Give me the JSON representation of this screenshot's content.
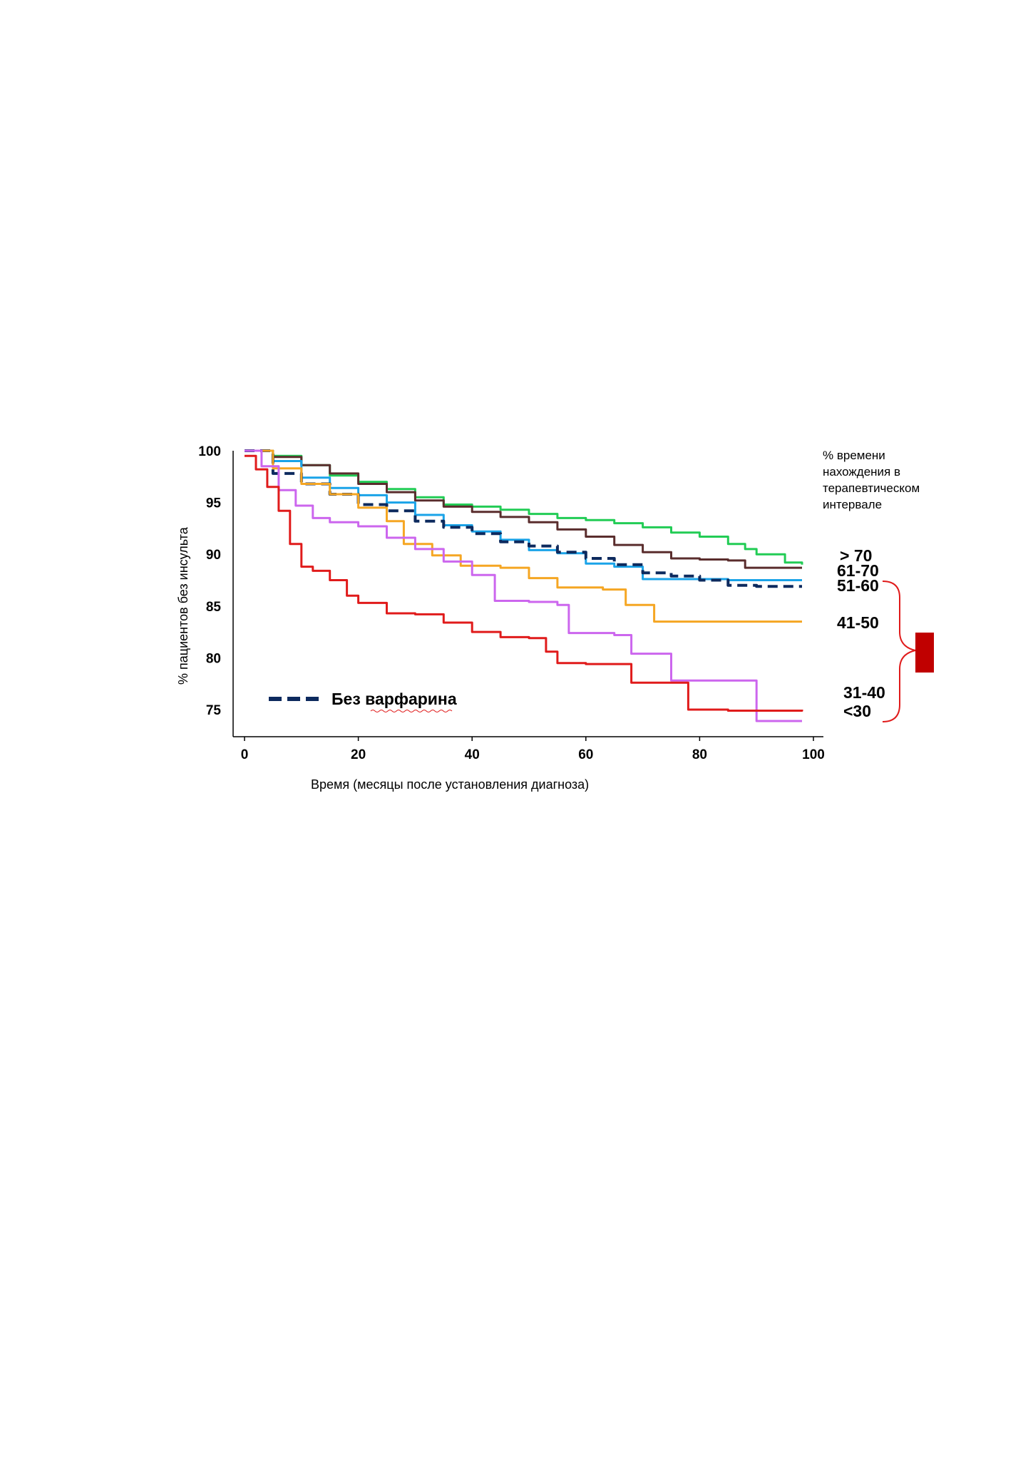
{
  "chart_data": {
    "type": "line",
    "step": true,
    "xlabel": "Время (месяцы после установления диагноза)",
    "ylabel": "% пациентов   без инсульта",
    "xlim": [
      0,
      100
    ],
    "ylim": [
      73,
      100
    ],
    "xticks": [
      0,
      20,
      40,
      60,
      80,
      100
    ],
    "yticks": [
      75,
      80,
      85,
      90,
      95,
      100
    ],
    "grid": false,
    "legend_title": "% времени нахождения в терапевтическом интервале",
    "legend_title_lines": [
      "% времени",
      "нахождения в",
      "терапевтическом",
      "интервале"
    ],
    "band_labels": [
      "> 70",
      "61-70",
      "51-60",
      "41-50",
      "31-40",
      "<30"
    ],
    "no_warfarin_label": "Без варфарина",
    "series": [
      {
        "name": "> 70",
        "color": "#22cc55",
        "dashed": false,
        "x": [
          0,
          5,
          10,
          15,
          20,
          25,
          30,
          35,
          40,
          45,
          50,
          55,
          60,
          65,
          70,
          75,
          80,
          85,
          88,
          90,
          95,
          98
        ],
        "y": [
          100,
          99.5,
          98.6,
          97.6,
          97.0,
          96.3,
          95.5,
          94.8,
          94.6,
          94.3,
          93.9,
          93.5,
          93.3,
          93.0,
          92.6,
          92.1,
          91.7,
          91.0,
          90.5,
          90.0,
          89.2,
          89.0
        ]
      },
      {
        "name": "61-70",
        "color": "#5a2d2d",
        "dashed": false,
        "x": [
          0,
          5,
          10,
          15,
          20,
          25,
          30,
          35,
          40,
          45,
          50,
          55,
          60,
          65,
          70,
          75,
          80,
          85,
          88,
          98
        ],
        "y": [
          100,
          99.4,
          98.6,
          97.8,
          96.8,
          96.0,
          95.2,
          94.6,
          94.1,
          93.6,
          93.1,
          92.4,
          91.7,
          90.9,
          90.2,
          89.6,
          89.5,
          89.4,
          88.7,
          88.7
        ]
      },
      {
        "name": "51-60",
        "color": "#1aa3e8",
        "dashed": false,
        "x": [
          0,
          5,
          10,
          15,
          20,
          25,
          30,
          35,
          40,
          45,
          50,
          55,
          60,
          65,
          70,
          75,
          80,
          85,
          90,
          98
        ],
        "y": [
          100,
          99.0,
          97.4,
          96.4,
          95.7,
          95.0,
          93.8,
          92.8,
          92.2,
          91.4,
          90.4,
          90.1,
          89.1,
          88.8,
          87.6,
          87.6,
          87.6,
          87.5,
          87.5,
          87.5
        ]
      },
      {
        "name": "Без варфарина",
        "color": "#0d2a5e",
        "dashed": true,
        "x": [
          0,
          5,
          10,
          15,
          20,
          25,
          30,
          35,
          40,
          45,
          50,
          55,
          60,
          65,
          70,
          75,
          80,
          85,
          90,
          98
        ],
        "y": [
          100,
          97.8,
          96.8,
          95.8,
          94.8,
          94.2,
          93.2,
          92.6,
          92.0,
          91.2,
          90.8,
          90.2,
          89.6,
          89.0,
          88.2,
          87.9,
          87.5,
          87.0,
          86.9,
          86.9
        ]
      },
      {
        "name": "41-50",
        "color": "#f5a623",
        "dashed": false,
        "x": [
          0,
          5,
          10,
          15,
          20,
          25,
          28,
          33,
          38,
          45,
          50,
          55,
          60,
          63,
          67,
          72,
          78,
          85,
          98
        ],
        "y": [
          100,
          98.3,
          96.8,
          95.8,
          94.5,
          93.2,
          91.0,
          89.9,
          88.9,
          88.7,
          87.7,
          86.8,
          86.8,
          86.6,
          85.1,
          83.5,
          83.5,
          83.5,
          83.5
        ]
      },
      {
        "name": "<30",
        "color": "#cc66ee",
        "dashed": false,
        "x": [
          0,
          3,
          6,
          9,
          12,
          15,
          20,
          25,
          30,
          35,
          40,
          44,
          50,
          55,
          57,
          60,
          65,
          68,
          70,
          74,
          75,
          80,
          88,
          90,
          95,
          98
        ],
        "y": [
          100,
          98.5,
          96.2,
          94.7,
          93.5,
          93.1,
          92.7,
          91.6,
          90.5,
          89.3,
          88.0,
          85.5,
          85.4,
          85.1,
          82.4,
          82.4,
          82.2,
          80.4,
          80.4,
          80.4,
          77.8,
          77.8,
          77.8,
          73.9,
          73.9,
          73.9
        ]
      },
      {
        "name": "31-40",
        "color": "#e01b1b",
        "dashed": false,
        "x": [
          0,
          2,
          4,
          6,
          8,
          10,
          12,
          15,
          18,
          20,
          25,
          30,
          35,
          40,
          45,
          50,
          53,
          55,
          60,
          65,
          68,
          72,
          75,
          78,
          85,
          98
        ],
        "y": [
          99.5,
          98.2,
          96.5,
          94.2,
          91.0,
          88.8,
          88.4,
          87.5,
          86.0,
          85.3,
          84.3,
          84.2,
          83.4,
          82.5,
          82.0,
          81.9,
          80.6,
          79.5,
          79.4,
          79.4,
          77.6,
          77.6,
          77.6,
          75.0,
          74.9,
          75.0
        ]
      }
    ]
  }
}
